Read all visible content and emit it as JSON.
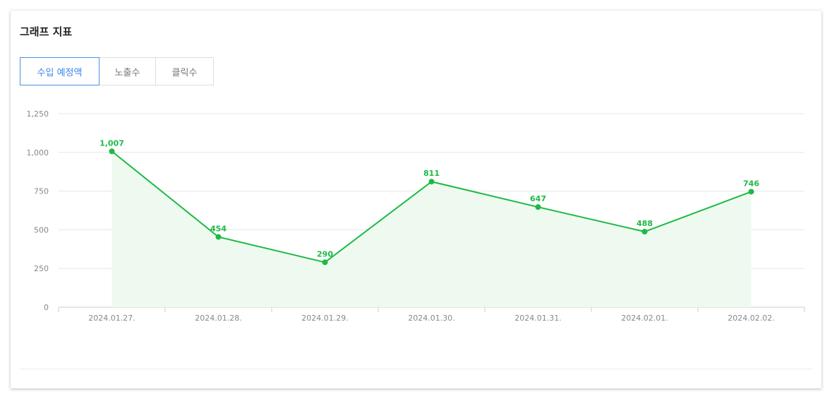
{
  "header": {
    "title": "그래프 지표"
  },
  "tabs": [
    {
      "label": "수입 예정액",
      "active": true
    },
    {
      "label": "노출수",
      "active": false
    },
    {
      "label": "클릭수",
      "active": false
    }
  ],
  "colors": {
    "line": "#1db945",
    "area": "#eefaf0",
    "active_tab": "#3a86ea"
  },
  "chart_data": {
    "type": "area",
    "categories": [
      "2024.01.27.",
      "2024.01.28.",
      "2024.01.29.",
      "2024.01.30.",
      "2024.01.31.",
      "2024.02.01.",
      "2024.02.02."
    ],
    "series": [
      {
        "values": [
          1007,
          454,
          290,
          811,
          647,
          488,
          746
        ],
        "labels": [
          "1,007",
          "454",
          "290",
          "811",
          "647",
          "488",
          "746"
        ]
      }
    ],
    "yticks": [
      0,
      250,
      500,
      750,
      1000,
      1250
    ],
    "ytick_labels": [
      "0",
      "250",
      "500",
      "750",
      "1,000",
      "1,250"
    ],
    "ylim": [
      0,
      1250
    ],
    "grid": true,
    "legend": "none"
  }
}
